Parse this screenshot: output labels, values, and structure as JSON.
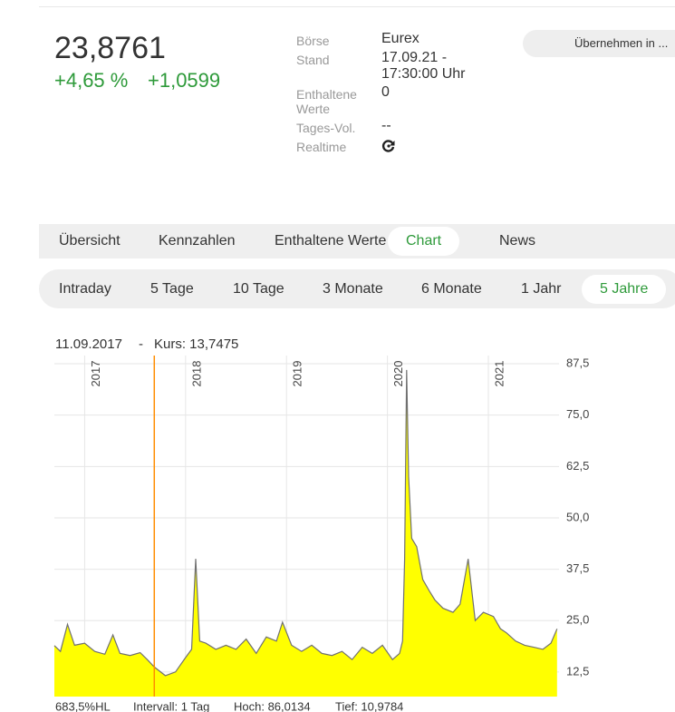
{
  "quote": {
    "price": "23,8761",
    "change_pct": "+4,65 %",
    "change_abs": "+1,0599"
  },
  "info": [
    {
      "label": "Börse",
      "value": "Eurex"
    },
    {
      "label": "Stand",
      "value": "17.09.21 - 17:30:00 Uhr"
    },
    {
      "label": "Enthaltene Werte",
      "value": "0"
    },
    {
      "label": "Tages-Vol.",
      "value": "--"
    },
    {
      "label": "Realtime"
    }
  ],
  "button": "Übernehmen in ...",
  "tabs": [
    "Übersicht",
    "Kennzahlen",
    "Enthaltene Werte",
    "Chart",
    "News"
  ],
  "active_tab": 3,
  "periods": [
    "Intraday",
    "5 Tage",
    "10 Tage",
    "3 Monate",
    "6 Monate",
    "1 Jahr",
    "5 Jahre"
  ],
  "active_period": 6,
  "chart_data": {
    "type": "area",
    "crosshair": {
      "date": "11.09.2017",
      "separator": "-",
      "label": "Kurs: 13,7475",
      "x": 2017.69,
      "color": "#ff8c00"
    },
    "x": [
      2016.7,
      2016.76,
      2016.83,
      2016.9,
      2017.0,
      2017.1,
      2017.2,
      2017.28,
      2017.35,
      2017.45,
      2017.55,
      2017.62,
      2017.69,
      2017.8,
      2017.9,
      2018.0,
      2018.06,
      2018.1,
      2018.14,
      2018.2,
      2018.3,
      2018.4,
      2018.5,
      2018.6,
      2018.7,
      2018.8,
      2018.9,
      2018.96,
      2019.05,
      2019.15,
      2019.25,
      2019.35,
      2019.45,
      2019.55,
      2019.65,
      2019.75,
      2019.85,
      2019.95,
      2020.05,
      2020.12,
      2020.15,
      2020.17,
      2020.19,
      2020.21,
      2020.24,
      2020.29,
      2020.35,
      2020.42,
      2020.47,
      2020.55,
      2020.65,
      2020.72,
      2020.8,
      2020.87,
      2020.95,
      2021.05,
      2021.12,
      2021.18,
      2021.27,
      2021.36,
      2021.45,
      2021.54,
      2021.62,
      2021.68
    ],
    "series": [
      {
        "name": "Kurs",
        "color": "#707070",
        "fill": "#ffff00",
        "values": [
          18.9,
          17.5,
          24.1,
          19.0,
          19.5,
          17.5,
          16.8,
          21.5,
          17.0,
          16.5,
          17.2,
          15.5,
          13.7,
          11.6,
          12.5,
          16.0,
          18.0,
          40.0,
          20.0,
          19.5,
          18.0,
          19.0,
          18.0,
          20.5,
          17.0,
          21.0,
          20.0,
          24.6,
          19.0,
          17.5,
          19.0,
          17.0,
          16.5,
          17.5,
          15.5,
          18.5,
          17.0,
          19.0,
          15.5,
          17.0,
          20.0,
          40.0,
          86.0,
          60.0,
          45.0,
          43.0,
          35.0,
          32.0,
          30.0,
          28.0,
          27.0,
          29.0,
          40.0,
          25.0,
          27.0,
          26.0,
          23.0,
          22.0,
          20.0,
          19.0,
          18.5,
          18.0,
          19.5,
          23.0
        ]
      }
    ],
    "xlim": [
      2016.7,
      2021.7
    ],
    "xticks": [
      2017,
      2018,
      2019,
      2020,
      2021
    ],
    "ylim": [
      6.5,
      89.5
    ],
    "yticks": [
      {
        "value": 12.5,
        "label": "12,5"
      },
      {
        "value": 25,
        "label": "25,0"
      },
      {
        "value": 37.5,
        "label": "37,5"
      },
      {
        "value": 50,
        "label": "50,0"
      },
      {
        "value": 62.5,
        "label": "62,5"
      },
      {
        "value": 75,
        "label": "75,0"
      },
      {
        "value": 87.5,
        "label": "87,5"
      }
    ],
    "grid": true,
    "footer": [
      "683,5%HL",
      "Intervall: 1 Tag",
      "Hoch: 86,0134",
      "Tief: 10,9784"
    ]
  }
}
